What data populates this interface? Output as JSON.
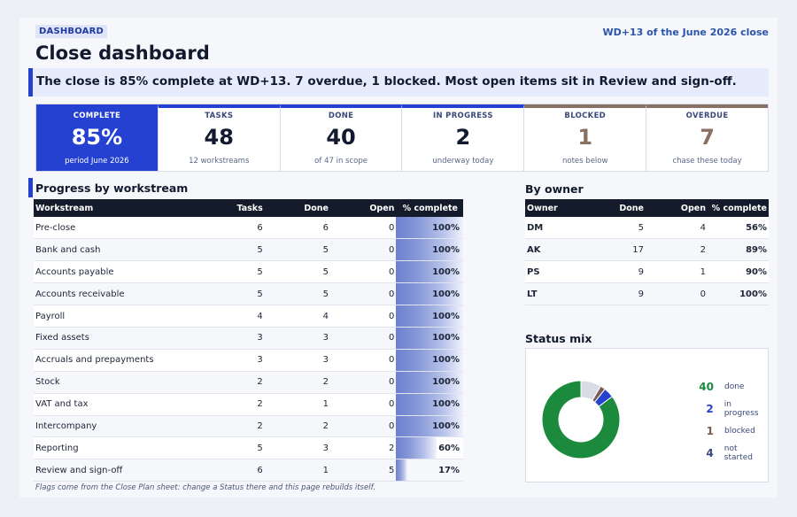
{
  "header": {
    "tag": "DASHBOARD",
    "workday": "WD+13 of the June 2026 close",
    "title": "Close dashboard",
    "headline": "The close is 85% complete at WD+13. 7 overdue, 1 blocked. Most open items sit in Review and sign-off."
  },
  "kpis": [
    {
      "label": "COMPLETE",
      "value": "85%",
      "sub": "period June 2026"
    },
    {
      "label": "TASKS",
      "value": "48",
      "sub": "12 workstreams"
    },
    {
      "label": "DONE",
      "value": "40",
      "sub": "of 47 in scope"
    },
    {
      "label": "IN PROGRESS",
      "value": "2",
      "sub": "underway today"
    },
    {
      "label": "BLOCKED",
      "value": "1",
      "sub": "notes below"
    },
    {
      "label": "OVERDUE",
      "value": "7",
      "sub": "chase these today"
    }
  ],
  "workstreams": {
    "title": "Progress by workstream",
    "columns": [
      "Workstream",
      "Tasks",
      "Done",
      "Open",
      "% complete"
    ],
    "rows": [
      {
        "name": "Pre-close",
        "tasks": "6",
        "done": "6",
        "open": "0",
        "pct": "100%",
        "frac": 1.0
      },
      {
        "name": "Bank and cash",
        "tasks": "5",
        "done": "5",
        "open": "0",
        "pct": "100%",
        "frac": 1.0
      },
      {
        "name": "Accounts payable",
        "tasks": "5",
        "done": "5",
        "open": "0",
        "pct": "100%",
        "frac": 1.0
      },
      {
        "name": "Accounts receivable",
        "tasks": "5",
        "done": "5",
        "open": "0",
        "pct": "100%",
        "frac": 1.0
      },
      {
        "name": "Payroll",
        "tasks": "4",
        "done": "4",
        "open": "0",
        "pct": "100%",
        "frac": 1.0
      },
      {
        "name": "Fixed assets",
        "tasks": "3",
        "done": "3",
        "open": "0",
        "pct": "100%",
        "frac": 1.0
      },
      {
        "name": "Accruals and prepayments",
        "tasks": "3",
        "done": "3",
        "open": "0",
        "pct": "100%",
        "frac": 1.0
      },
      {
        "name": "Stock",
        "tasks": "2",
        "done": "2",
        "open": "0",
        "pct": "100%",
        "frac": 1.0
      },
      {
        "name": "VAT and tax",
        "tasks": "2",
        "done": "1",
        "open": "0",
        "pct": "100%",
        "frac": 1.0
      },
      {
        "name": "Intercompany",
        "tasks": "2",
        "done": "2",
        "open": "0",
        "pct": "100%",
        "frac": 1.0
      },
      {
        "name": "Reporting",
        "tasks": "5",
        "done": "3",
        "open": "2",
        "pct": "60%",
        "frac": 0.6
      },
      {
        "name": "Review and sign-off",
        "tasks": "6",
        "done": "1",
        "open": "5",
        "pct": "17%",
        "frac": 0.17
      }
    ]
  },
  "owners": {
    "title": "By owner",
    "columns": [
      "Owner",
      "Done",
      "Open",
      "% complete"
    ],
    "rows": [
      {
        "owner": "DM",
        "done": "5",
        "open": "4",
        "pct": "56%"
      },
      {
        "owner": "AK",
        "done": "17",
        "open": "2",
        "pct": "89%"
      },
      {
        "owner": "PS",
        "done": "9",
        "open": "1",
        "pct": "90%"
      },
      {
        "owner": "LT",
        "done": "9",
        "open": "0",
        "pct": "100%"
      }
    ]
  },
  "status_mix": {
    "title": "Status mix",
    "items": [
      {
        "count": "40",
        "label": "done",
        "color": "#1b8a3c"
      },
      {
        "count": "2",
        "label": "in progress",
        "color": "#2541d2"
      },
      {
        "count": "1",
        "label": "blocked",
        "color": "#7a5c52"
      },
      {
        "count": "4",
        "label": "not started",
        "color": "#d9dce6"
      }
    ]
  },
  "footnote": "Flags come from the Close Plan sheet: change a Status there and this page rebuilds itself."
}
